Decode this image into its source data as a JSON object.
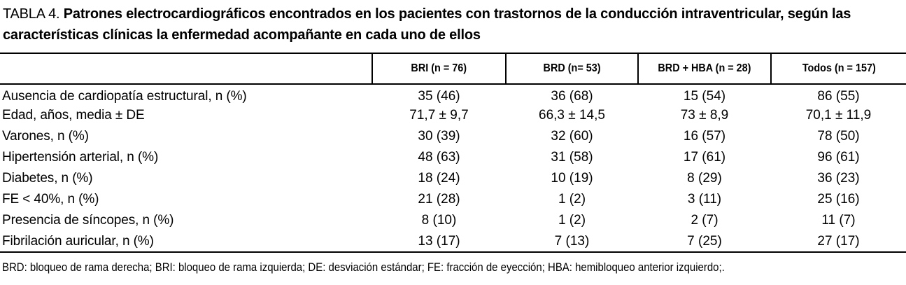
{
  "title": {
    "label": "TABLA 4.",
    "text": "Patrones electrocardiográficos encontrados en los pacientes con trastornos de la conducción intraventricular, según las características clínicas la enfermedad acompañante en cada uno de ellos"
  },
  "table": {
    "columns": [
      "BRI (n = 76)",
      "BRD (n= 53)",
      "BRD + HBA (n = 28)",
      "Todos (n = 157)"
    ],
    "rows": [
      {
        "label": "Ausencia de cardiopatía estructural, n (%)",
        "values": [
          "35 (46)",
          "36 (68)",
          "15 (54)",
          "86 (55)"
        ]
      },
      {
        "label": "Edad, años, media ± DE",
        "values": [
          "71,7 ± 9,7",
          "66,3 ± 14,5",
          "73 ± 8,9",
          "70,1 ± 11,9"
        ]
      },
      {
        "label": "Varones, n (%)",
        "values": [
          "30 (39)",
          "32 (60)",
          "16 (57)",
          "78 (50)"
        ]
      },
      {
        "label": "Hipertensión arterial, n (%)",
        "values": [
          "48 (63)",
          "31 (58)",
          "17 (61)",
          "96 (61)"
        ]
      },
      {
        "label": "Diabetes, n (%)",
        "values": [
          "18 (24)",
          "10 (19)",
          "8 (29)",
          "36 (23)"
        ]
      },
      {
        "label": "FE < 40%, n (%)",
        "values": [
          "21 (28)",
          "1 (2)",
          "3 (11)",
          "25 (16)"
        ]
      },
      {
        "label": "Presencia de síncopes, n (%)",
        "values": [
          "8 (10)",
          "1 (2)",
          "2 (7)",
          "11 (7)"
        ]
      },
      {
        "label": "Fibrilación auricular, n (%)",
        "values": [
          "13 (17)",
          "7 (13)",
          "7 (25)",
          "27 (17)"
        ]
      }
    ]
  },
  "footnote": "BRD: bloqueo de rama derecha; BRI: bloqueo de rama izquierda; DE: desviación estándar; FE: fracción de eyección; HBA: hemibloqueo anterior izquierdo;.",
  "colors": {
    "text": "#000000",
    "background": "#ffffff",
    "rule": "#000000"
  }
}
